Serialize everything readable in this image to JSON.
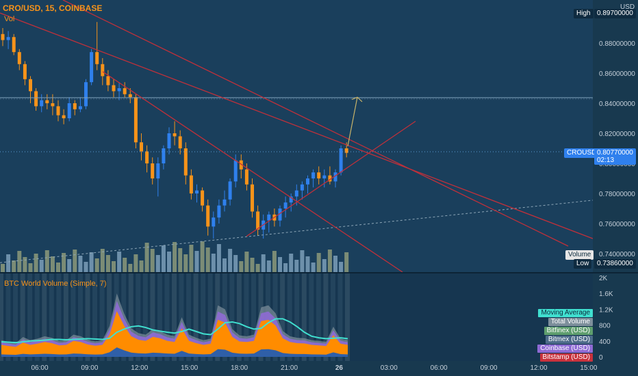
{
  "header": {
    "symbol_line": "CRO/USD, 15, COINBASE",
    "vol_label": "Vol"
  },
  "indicator": {
    "title": "BTC World Volume (Simple, 7)"
  },
  "price_axis": {
    "currency_label": "USD",
    "ticks": [
      "0.88000000",
      "0.86000000",
      "0.84000000",
      "0.82000000",
      "0.80000000",
      "0.78000000",
      "0.76000000",
      "0.74000000"
    ],
    "high_label": "High",
    "high_value": "0.89700000",
    "low_label": "Low",
    "low_value": "0.73860000",
    "volume_label": "Volume",
    "symbol_tag": "CROUSD",
    "last_price": "0.80770000",
    "countdown": "02:13"
  },
  "volume_axis": {
    "ticks": [
      "2K",
      "1.6K",
      "1.2K",
      "800",
      "400",
      "0"
    ]
  },
  "time_axis": {
    "labels": [
      "06:00",
      "09:00",
      "12:00",
      "15:00",
      "18:00",
      "21:00",
      "26",
      "03:00",
      "06:00",
      "09:00",
      "12:00",
      "15:00"
    ]
  },
  "legend": [
    {
      "label": "Moving Average",
      "color": "#40e0d0",
      "text_color": "#0b2a3c"
    },
    {
      "label": "Total Volume",
      "color": "#7d8f9b",
      "text_color": "#ffffff"
    },
    {
      "label": "Bitfinex (USD)",
      "color": "#5e9e6e",
      "text_color": "#ffffff"
    },
    {
      "label": "Bitmex (USD)",
      "color": "#4d6b8a",
      "text_color": "#ffffff"
    },
    {
      "label": "Coinbase (USD)",
      "color": "#8e6ad4",
      "text_color": "#ffffff"
    },
    {
      "label": "Bitstamp (USD)",
      "color": "#c8323c",
      "text_color": "#ffffff"
    }
  ],
  "colors": {
    "background": "#1a3f5c",
    "up_candle": "#2f80ed",
    "down_candle": "#f7931a",
    "trendline": "#c0303a",
    "arrow": "#c8b46a",
    "ma_line": "#40e0d0",
    "orange_area": "#ff8c00",
    "purple_area": "#8e6ad4"
  },
  "chart_data": [
    {
      "type": "candlestick",
      "title": "CRO/USD, 15, COINBASE",
      "x_range": [
        "04:30",
        "15:00 (26)"
      ],
      "y_range": [
        0.7386,
        0.897
      ],
      "y_axis": "right",
      "high": 0.897,
      "low": 0.7386,
      "last": 0.8077,
      "horizontal_level": 0.8437,
      "candles_ohlc": [
        [
          0.886,
          0.89,
          0.878,
          0.882
        ],
        [
          0.882,
          0.888,
          0.876,
          0.884
        ],
        [
          0.884,
          0.886,
          0.872,
          0.874
        ],
        [
          0.874,
          0.876,
          0.862,
          0.866
        ],
        [
          0.866,
          0.868,
          0.852,
          0.856
        ],
        [
          0.856,
          0.858,
          0.84,
          0.848
        ],
        [
          0.848,
          0.85,
          0.835,
          0.838
        ],
        [
          0.838,
          0.846,
          0.834,
          0.842
        ],
        [
          0.842,
          0.846,
          0.836,
          0.84
        ],
        [
          0.84,
          0.846,
          0.832,
          0.838
        ],
        [
          0.838,
          0.842,
          0.828,
          0.832
        ],
        [
          0.832,
          0.836,
          0.826,
          0.83
        ],
        [
          0.83,
          0.844,
          0.828,
          0.84
        ],
        [
          0.84,
          0.842,
          0.832,
          0.836
        ],
        [
          0.836,
          0.844,
          0.834,
          0.838
        ],
        [
          0.838,
          0.856,
          0.836,
          0.854
        ],
        [
          0.854,
          0.876,
          0.852,
          0.874
        ],
        [
          0.874,
          0.894,
          0.862,
          0.866
        ],
        [
          0.866,
          0.87,
          0.852,
          0.858
        ],
        [
          0.858,
          0.862,
          0.848,
          0.852
        ],
        [
          0.852,
          0.856,
          0.844,
          0.848
        ],
        [
          0.848,
          0.854,
          0.842,
          0.85
        ],
        [
          0.85,
          0.854,
          0.844,
          0.846
        ],
        [
          0.846,
          0.85,
          0.84,
          0.844
        ],
        [
          0.844,
          0.846,
          0.81,
          0.814
        ],
        [
          0.814,
          0.82,
          0.802,
          0.808
        ],
        [
          0.808,
          0.812,
          0.794,
          0.8
        ],
        [
          0.8,
          0.804,
          0.786,
          0.79
        ],
        [
          0.79,
          0.804,
          0.778,
          0.8
        ],
        [
          0.8,
          0.812,
          0.796,
          0.81
        ],
        [
          0.81,
          0.824,
          0.806,
          0.82
        ],
        [
          0.82,
          0.828,
          0.812,
          0.818
        ],
        [
          0.818,
          0.822,
          0.806,
          0.81
        ],
        [
          0.81,
          0.814,
          0.786,
          0.792
        ],
        [
          0.792,
          0.796,
          0.776,
          0.78
        ],
        [
          0.78,
          0.786,
          0.774,
          0.782
        ],
        [
          0.782,
          0.784,
          0.768,
          0.772
        ],
        [
          0.772,
          0.776,
          0.752,
          0.758
        ],
        [
          0.758,
          0.768,
          0.75,
          0.764
        ],
        [
          0.764,
          0.776,
          0.76,
          0.772
        ],
        [
          0.772,
          0.782,
          0.768,
          0.776
        ],
        [
          0.776,
          0.79,
          0.772,
          0.788
        ],
        [
          0.788,
          0.806,
          0.784,
          0.802
        ],
        [
          0.802,
          0.806,
          0.79,
          0.796
        ],
        [
          0.796,
          0.8,
          0.782,
          0.786
        ],
        [
          0.786,
          0.79,
          0.764,
          0.768
        ],
        [
          0.768,
          0.772,
          0.752,
          0.756
        ],
        [
          0.756,
          0.766,
          0.75,
          0.762
        ],
        [
          0.762,
          0.768,
          0.754,
          0.766
        ],
        [
          0.766,
          0.77,
          0.758,
          0.762
        ],
        [
          0.762,
          0.772,
          0.758,
          0.77
        ],
        [
          0.77,
          0.778,
          0.764,
          0.774
        ],
        [
          0.774,
          0.78,
          0.768,
          0.778
        ],
        [
          0.778,
          0.786,
          0.772,
          0.782
        ],
        [
          0.782,
          0.788,
          0.776,
          0.786
        ],
        [
          0.786,
          0.792,
          0.78,
          0.79
        ],
        [
          0.79,
          0.796,
          0.784,
          0.794
        ],
        [
          0.794,
          0.798,
          0.786,
          0.79
        ],
        [
          0.79,
          0.796,
          0.784,
          0.792
        ],
        [
          0.792,
          0.798,
          0.786,
          0.788
        ],
        [
          0.788,
          0.796,
          0.784,
          0.794
        ],
        [
          0.794,
          0.812,
          0.792,
          0.81
        ],
        [
          0.81,
          0.814,
          0.804,
          0.807
        ]
      ]
    },
    {
      "type": "area",
      "title": "BTC World Volume (Simple, 7)",
      "y_range": [
        0,
        2000
      ],
      "series": [
        {
          "name": "Total Volume",
          "values": [
            420,
            380,
            350,
            500,
            420,
            460,
            520,
            480,
            400,
            420,
            560,
            520,
            430,
            390,
            420,
            780,
            1600,
            1100,
            720,
            600,
            560,
            700,
            650,
            560,
            520,
            1000,
            560,
            480,
            420,
            460,
            1300,
            1200,
            700,
            540,
            520,
            560,
            1250,
            1300,
            1100,
            650,
            520,
            480,
            470,
            420,
            400,
            380,
            760,
            460,
            420
          ]
        },
        {
          "name": "Moving Average",
          "values": [
            380,
            370,
            360,
            380,
            400,
            410,
            420,
            440,
            440,
            430,
            440,
            450,
            460,
            450,
            440,
            470,
            620,
            700,
            760,
            780,
            740,
            680,
            650,
            620,
            600,
            640,
            700,
            640,
            580,
            560,
            700,
            860,
            880,
            840,
            760,
            700,
            720,
            860,
            960,
            960,
            880,
            760,
            620,
            520,
            480,
            460,
            470,
            480,
            460
          ]
        }
      ]
    }
  ]
}
